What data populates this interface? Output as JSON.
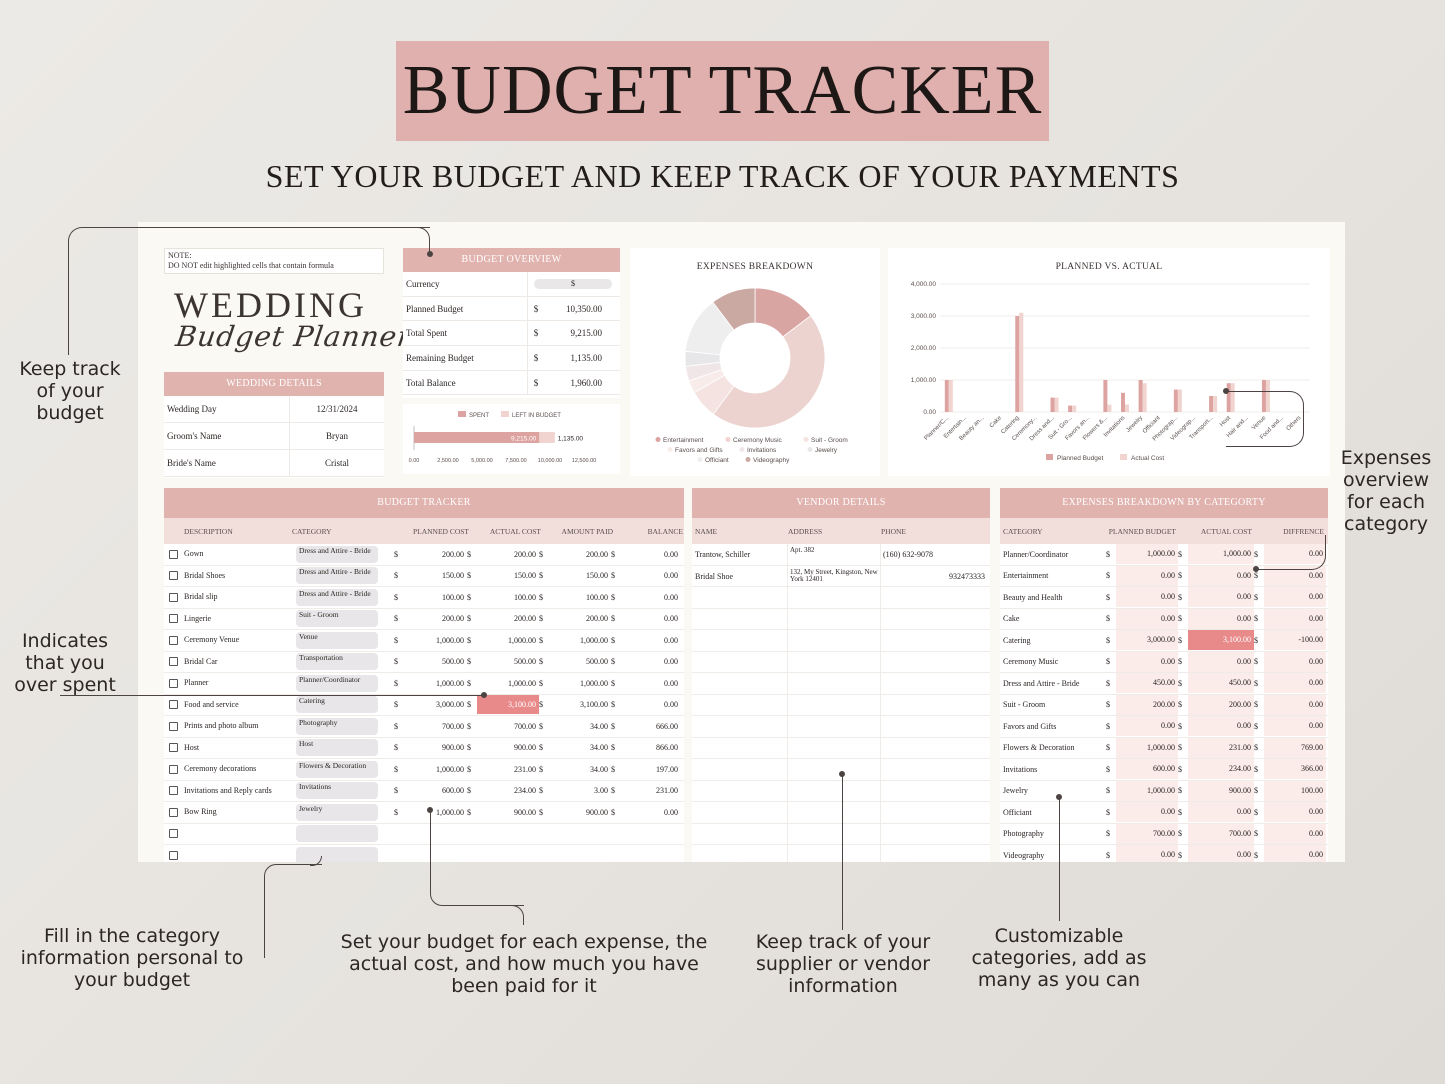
{
  "header": {
    "title": "BUDGET TRACKER",
    "subtitle": "SET YOUR BUDGET AND KEEP TRACK OF YOUR PAYMENTS"
  },
  "sheet": {
    "note_line1": "NOTE:",
    "note_line2": "DO NOT edit highlighted cells that contain formula",
    "logo_line1": "WEDDING",
    "logo_line2": "Budget Planner",
    "wedding_details": {
      "title": "WEDDING DETAILS",
      "rows": [
        {
          "label": "Wedding Day",
          "value": "12/31/2024"
        },
        {
          "label": "Groom's Name",
          "value": "Bryan"
        },
        {
          "label": "Bride's Name",
          "value": "Cristal"
        }
      ]
    },
    "budget_overview": {
      "title": "BUDGET OVERVIEW",
      "currency_label": "Currency",
      "currency_value": "$",
      "rows": [
        {
          "label": "Planned Budget",
          "cur": "$",
          "value": "10,350.00"
        },
        {
          "label": "Total Spent",
          "cur": "$",
          "value": "9,215.00"
        },
        {
          "label": "Remaining Budget",
          "cur": "$",
          "value": "1,135.00"
        },
        {
          "label": "Total Balance",
          "cur": "$",
          "value": "1,960.00"
        }
      ],
      "mini_chart": {
        "legend_spent": "SPENT",
        "legend_left": "LEFT IN BUDGET",
        "spent_value": 9215,
        "spent_label": "9,215.00",
        "left_value": 1135,
        "left_label": "1,135.00",
        "ticks": [
          "0.00",
          "2,500.00",
          "5,000.00",
          "7,500.00",
          "10,000.00",
          "12,500.00"
        ]
      }
    },
    "expenses_breakdown": {
      "title": "EXPENSES BREAKDOWN",
      "legend": [
        "Entertainment",
        "Ceremony Music",
        "Suit - Groom",
        "Favors and Gifts",
        "Invitations",
        "Jewelry",
        "Officiant",
        "Videography"
      ]
    },
    "planned_vs_actual": {
      "title": "PLANNED VS. ACTUAL",
      "legend_planned": "Planned Budget",
      "legend_actual": "Actual Cost"
    },
    "budget_tracker": {
      "title": "BUDGET TRACKER",
      "columns": [
        "DESCRIPTION",
        "CATEGORY",
        "PLANNED COST",
        "ACTUAL COST",
        "AMOUNT PAID",
        "BALANCE"
      ],
      "rows": [
        {
          "desc": "Gown",
          "cat": "Dress and Attire - Bride",
          "planned": "200.00",
          "actual": "200.00",
          "paid": "200.00",
          "balance": "0.00",
          "over": false
        },
        {
          "desc": "Bridal Shoes",
          "cat": "Dress and Attire - Bride",
          "planned": "150.00",
          "actual": "150.00",
          "paid": "150.00",
          "balance": "0.00",
          "over": false
        },
        {
          "desc": "Bridal slip",
          "cat": "Dress and Attire - Bride",
          "planned": "100.00",
          "actual": "100.00",
          "paid": "100.00",
          "balance": "0.00",
          "over": false
        },
        {
          "desc": "Lingerie",
          "cat": "Suit - Groom",
          "planned": "200.00",
          "actual": "200.00",
          "paid": "200.00",
          "balance": "0.00",
          "over": false
        },
        {
          "desc": "Ceremony Venue",
          "cat": "Venue",
          "planned": "1,000.00",
          "actual": "1,000.00",
          "paid": "1,000.00",
          "balance": "0.00",
          "over": false
        },
        {
          "desc": "Bridal Car",
          "cat": "Transportation",
          "planned": "500.00",
          "actual": "500.00",
          "paid": "500.00",
          "balance": "0.00",
          "over": false
        },
        {
          "desc": "Planner",
          "cat": "Planner/Coordinator",
          "planned": "1,000.00",
          "actual": "1,000.00",
          "paid": "1,000.00",
          "balance": "0.00",
          "over": false
        },
        {
          "desc": "Food and service",
          "cat": "Catering",
          "planned": "3,000.00",
          "actual": "3,100.00",
          "paid": "3,100.00",
          "balance": "0.00",
          "over": true
        },
        {
          "desc": "Prints and photo album",
          "cat": "Photography",
          "planned": "700.00",
          "actual": "700.00",
          "paid": "34.00",
          "balance": "666.00",
          "over": false
        },
        {
          "desc": "Host",
          "cat": "Host",
          "planned": "900.00",
          "actual": "900.00",
          "paid": "34.00",
          "balance": "866.00",
          "over": false
        },
        {
          "desc": "Ceremony decorations",
          "cat": "Flowers & Decoration",
          "planned": "1,000.00",
          "actual": "231.00",
          "paid": "34.00",
          "balance": "197.00",
          "over": false
        },
        {
          "desc": "Invitations and Reply cards",
          "cat": "Invitations",
          "planned": "600.00",
          "actual": "234.00",
          "paid": "3.00",
          "balance": "231.00",
          "over": false
        },
        {
          "desc": "Bow Ring",
          "cat": "Jewelry",
          "planned": "1,000.00",
          "actual": "900.00",
          "paid": "900.00",
          "balance": "0.00",
          "over": false
        },
        {
          "desc": "",
          "cat": "",
          "planned": "",
          "actual": "",
          "paid": "",
          "balance": "",
          "over": false
        },
        {
          "desc": "",
          "cat": "",
          "planned": "",
          "actual": "",
          "paid": "",
          "balance": "",
          "over": false
        }
      ]
    },
    "vendor_details": {
      "title": "VENDOR DETAILS",
      "columns": [
        "NAME",
        "ADDRESS",
        "PHONE"
      ],
      "rows": [
        {
          "name": "Trantow, Schiller",
          "address": "Apt. 382",
          "phone": "(160) 632-9078"
        },
        {
          "name": "Bridal Shoe",
          "address": "132, My Street, Kingston, New York 12401",
          "phone": "932473333"
        }
      ]
    },
    "category_breakdown": {
      "title": "EXPENSES BREAKDOWN BY CATEGORTY",
      "columns": [
        "CATEGORY",
        "PLANNED BUDGET",
        "ACTUAL COST",
        "DIFFRENCE"
      ],
      "rows": [
        {
          "cat": "Planner/Coordinator",
          "planned": "1,000.00",
          "actual": "1,000.00",
          "diff": "0.00",
          "over": false
        },
        {
          "cat": "Entertainment",
          "planned": "0.00",
          "actual": "0.00",
          "diff": "0.00",
          "over": false
        },
        {
          "cat": "Beauty and Health",
          "planned": "0.00",
          "actual": "0.00",
          "diff": "0.00",
          "over": false
        },
        {
          "cat": "Cake",
          "planned": "0.00",
          "actual": "0.00",
          "diff": "0.00",
          "over": false
        },
        {
          "cat": "Catering",
          "planned": "3,000.00",
          "actual": "3,100.00",
          "diff": "-100.00",
          "over": true
        },
        {
          "cat": "Ceremony Music",
          "planned": "0.00",
          "actual": "0.00",
          "diff": "0.00",
          "over": false
        },
        {
          "cat": "Dress and Attire - Bride",
          "planned": "450.00",
          "actual": "450.00",
          "diff": "0.00",
          "over": false
        },
        {
          "cat": "Suit - Groom",
          "planned": "200.00",
          "actual": "200.00",
          "diff": "0.00",
          "over": false
        },
        {
          "cat": "Favors and Gifts",
          "planned": "0.00",
          "actual": "0.00",
          "diff": "0.00",
          "over": false
        },
        {
          "cat": "Flowers & Decoration",
          "planned": "1,000.00",
          "actual": "231.00",
          "diff": "769.00",
          "over": false
        },
        {
          "cat": "Invitations",
          "planned": "600.00",
          "actual": "234.00",
          "diff": "366.00",
          "over": false
        },
        {
          "cat": "Jewelry",
          "planned": "1,000.00",
          "actual": "900.00",
          "diff": "100.00",
          "over": false
        },
        {
          "cat": "Officiant",
          "planned": "0.00",
          "actual": "0.00",
          "diff": "0.00",
          "over": false
        },
        {
          "cat": "Photography",
          "planned": "700.00",
          "actual": "700.00",
          "diff": "0.00",
          "over": false
        },
        {
          "cat": "Videography",
          "planned": "0.00",
          "actual": "0.00",
          "diff": "0.00",
          "over": false
        }
      ]
    }
  },
  "annotations": {
    "budget": "Keep track of your budget",
    "overspent": "Indicates that you over spent",
    "category": "Fill in the category information personal to your budget",
    "set_budget": "Set your budget for each expense, the actual cost, and how much you have been paid for it",
    "vendor": "Keep track of your supplier or vendor information",
    "customizable": "Customizable categories, add as many as you can",
    "expenses": "Expenses overview for each category"
  },
  "colors": {
    "accent": "#e1b3af",
    "header_light": "#f2dfdc",
    "over_spent": "#e88a8a",
    "planned_bar": "#dca3a0",
    "actual_bar": "#f1d4d0"
  },
  "chart_data": [
    {
      "type": "pie",
      "title": "EXPENSES BREAKDOWN",
      "donut": true,
      "categories": [
        "Planner/Coordinator",
        "Catering",
        "Dress and Attire - Bride",
        "Suit - Groom",
        "Flowers & Decoration",
        "Invitations",
        "Jewelry",
        "Photography"
      ],
      "values": [
        1000,
        3100,
        450,
        200,
        231,
        234,
        900,
        700
      ],
      "colors": [
        "#d9a5a2",
        "#ecd3cf",
        "#f5e3e1",
        "#f8ecea",
        "#f0e6e8",
        "#e7e7e9",
        "#eeeeee",
        "#c9a9a1"
      ]
    },
    {
      "type": "bar",
      "title": "PLANNED VS. ACTUAL",
      "categories": [
        "Planner/C...",
        "Entertain...",
        "Beauty an...",
        "Cake",
        "Catering",
        "Ceremony...",
        "Dress and...",
        "Suit - Gro...",
        "Favors an...",
        "Flowers &...",
        "Invitations",
        "Jewelry",
        "Officiant",
        "Photograp...",
        "Videograp...",
        "Transport...",
        "Host",
        "Hair and...",
        "Venue",
        "Food and...",
        "Others"
      ],
      "series": [
        {
          "name": "Planned Budget",
          "values": [
            1000,
            0,
            0,
            0,
            3000,
            0,
            450,
            200,
            0,
            1000,
            600,
            1000,
            0,
            700,
            0,
            500,
            900,
            0,
            1000,
            0,
            0
          ]
        },
        {
          "name": "Actual Cost",
          "values": [
            1000,
            0,
            0,
            0,
            3100,
            0,
            450,
            200,
            0,
            231,
            234,
            900,
            0,
            700,
            0,
            500,
            900,
            0,
            1000,
            0,
            0
          ]
        }
      ],
      "yticks": [
        "4,000.00",
        "3,000.00",
        "2,000.00",
        "1,000.00",
        "0.00"
      ],
      "ylim": [
        0,
        4000
      ],
      "legend": "bottom"
    }
  ]
}
